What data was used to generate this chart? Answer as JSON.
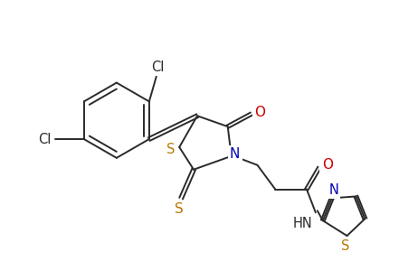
{
  "bg_color": "#ffffff",
  "line_color": "#2a2a2a",
  "atom_colors": {
    "O": "#cc0000",
    "N": "#0000bb",
    "S": "#bb7700",
    "Cl": "#2a2a2a"
  },
  "figsize": [
    4.41,
    3.1
  ],
  "dpi": 100
}
